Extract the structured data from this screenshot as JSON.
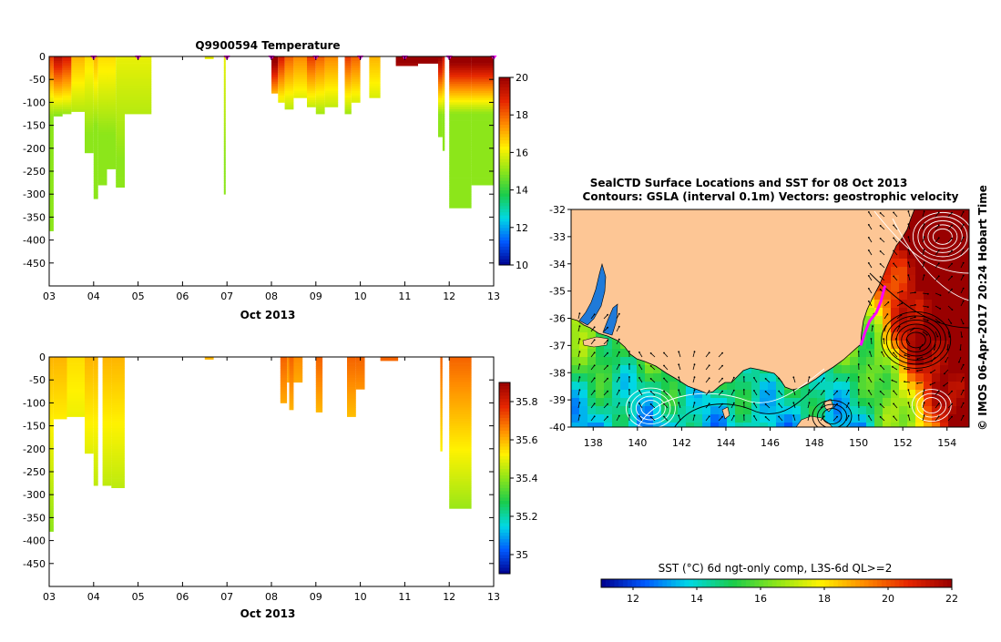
{
  "chart_data": [
    {
      "type": "heatmap",
      "title": "Q9900594  Temperature",
      "xlabel": "Oct 2013",
      "ylabel": "",
      "xlim": [
        3,
        13
      ],
      "ylim": [
        0,
        -500
      ],
      "x_ticks": [
        "03",
        "04",
        "05",
        "06",
        "07",
        "08",
        "09",
        "10",
        "11",
        "12",
        "13"
      ],
      "y_ticks": [
        "0",
        "-50",
        "-100",
        "-150",
        "-200",
        "-250",
        "-300",
        "-350",
        "-400",
        "-450"
      ],
      "colorbar": {
        "min": 10,
        "max": 20,
        "ticks": [
          "20",
          "18",
          "16",
          "14",
          "12",
          "10"
        ]
      },
      "profiles": [
        {
          "t0": 3.0,
          "t1": 3.1,
          "depth": 380,
          "surface_value": 18.5
        },
        {
          "t0": 3.1,
          "t1": 3.3,
          "depth": 130,
          "surface_value": 19.5
        },
        {
          "t0": 3.3,
          "t1": 3.5,
          "depth": 125,
          "surface_value": 19.0
        },
        {
          "t0": 3.5,
          "t1": 3.8,
          "depth": 120,
          "surface_value": 17.0
        },
        {
          "t0": 3.8,
          "t1": 4.0,
          "depth": 210,
          "surface_value": 16.5
        },
        {
          "t0": 4.0,
          "t1": 4.1,
          "depth": 310,
          "surface_value": 17.0
        },
        {
          "t0": 4.1,
          "t1": 4.3,
          "depth": 280,
          "surface_value": 16.5
        },
        {
          "t0": 4.3,
          "t1": 4.5,
          "depth": 245,
          "surface_value": 16.5
        },
        {
          "t0": 4.5,
          "t1": 4.7,
          "depth": 285,
          "surface_value": 16.0
        },
        {
          "t0": 4.7,
          "t1": 5.3,
          "depth": 125,
          "surface_value": 16.0
        },
        {
          "t0": 5.3,
          "t1": 6.5,
          "depth": 0,
          "surface_value": 16.0
        },
        {
          "t0": 6.5,
          "t1": 6.7,
          "depth": 5,
          "surface_value": 16.0
        },
        {
          "t0": 6.93,
          "t1": 6.97,
          "depth": 300,
          "surface_value": 16.0
        },
        {
          "t0": 8.0,
          "t1": 8.15,
          "depth": 80,
          "surface_value": 20.5
        },
        {
          "t0": 8.15,
          "t1": 8.3,
          "depth": 100,
          "surface_value": 19.0
        },
        {
          "t0": 8.3,
          "t1": 8.5,
          "depth": 115,
          "surface_value": 18.0
        },
        {
          "t0": 8.5,
          "t1": 8.8,
          "depth": 90,
          "surface_value": 17.5
        },
        {
          "t0": 8.8,
          "t1": 9.0,
          "depth": 110,
          "surface_value": 18.5
        },
        {
          "t0": 9.0,
          "t1": 9.2,
          "depth": 125,
          "surface_value": 18.0
        },
        {
          "t0": 9.2,
          "t1": 9.5,
          "depth": 110,
          "surface_value": 17.5
        },
        {
          "t0": 9.65,
          "t1": 9.8,
          "depth": 125,
          "surface_value": 18.5
        },
        {
          "t0": 9.8,
          "t1": 10.0,
          "depth": 100,
          "surface_value": 18.0
        },
        {
          "t0": 10.2,
          "t1": 10.45,
          "depth": 90,
          "surface_value": 17.0
        },
        {
          "t0": 10.8,
          "t1": 11.3,
          "depth": 20,
          "surface_value": 20.5
        },
        {
          "t0": 11.3,
          "t1": 11.8,
          "depth": 15,
          "surface_value": 20.5
        },
        {
          "t0": 11.75,
          "t1": 11.85,
          "depth": 175,
          "surface_value": 20.0
        },
        {
          "t0": 11.85,
          "t1": 11.9,
          "depth": 205,
          "surface_value": 19.0
        },
        {
          "t0": 12.0,
          "t1": 12.5,
          "depth": 330,
          "surface_value": 20.5
        },
        {
          "t0": 12.5,
          "t1": 13.0,
          "depth": 280,
          "surface_value": 20.5
        }
      ],
      "profile_markers": [
        4.0,
        5.0,
        7.0,
        8.0,
        9.0,
        10.0,
        11.0,
        12.0,
        13.0
      ]
    },
    {
      "type": "heatmap",
      "title": "",
      "xlabel": "Oct 2013",
      "ylabel": "",
      "xlim": [
        3,
        13
      ],
      "ylim": [
        0,
        -500
      ],
      "x_ticks": [
        "03",
        "04",
        "05",
        "06",
        "07",
        "08",
        "09",
        "10",
        "11",
        "12",
        "13"
      ],
      "y_ticks": [
        "0",
        "-50",
        "-100",
        "-150",
        "-200",
        "-250",
        "-300",
        "-350",
        "-400",
        "-450"
      ],
      "colorbar": {
        "min": 34.9,
        "max": 35.9,
        "ticks": [
          "35.8",
          "35.6",
          "35.4",
          "35.2",
          "35"
        ]
      },
      "profiles": [
        {
          "t0": 3.0,
          "t1": 3.1,
          "depth": 380,
          "surface_value": 35.6
        },
        {
          "t0": 3.1,
          "t1": 3.4,
          "depth": 135,
          "surface_value": 35.6
        },
        {
          "t0": 3.4,
          "t1": 3.8,
          "depth": 130,
          "surface_value": 35.55
        },
        {
          "t0": 3.8,
          "t1": 4.0,
          "depth": 210,
          "surface_value": 35.6
        },
        {
          "t0": 4.0,
          "t1": 4.1,
          "depth": 280,
          "surface_value": 35.6
        },
        {
          "t0": 4.2,
          "t1": 4.4,
          "depth": 280,
          "surface_value": 35.6
        },
        {
          "t0": 4.4,
          "t1": 4.7,
          "depth": 285,
          "surface_value": 35.6
        },
        {
          "t0": 6.5,
          "t1": 6.7,
          "depth": 5,
          "surface_value": 35.6
        },
        {
          "t0": 8.2,
          "t1": 8.35,
          "depth": 100,
          "surface_value": 35.7
        },
        {
          "t0": 8.35,
          "t1": 8.7,
          "depth": 55,
          "surface_value": 35.65
        },
        {
          "t0": 8.4,
          "t1": 8.5,
          "depth": 115,
          "surface_value": 35.7
        },
        {
          "t0": 9.0,
          "t1": 9.15,
          "depth": 120,
          "surface_value": 35.7
        },
        {
          "t0": 9.7,
          "t1": 9.9,
          "depth": 130,
          "surface_value": 35.7
        },
        {
          "t0": 9.9,
          "t1": 10.1,
          "depth": 70,
          "surface_value": 35.7
        },
        {
          "t0": 10.45,
          "t1": 10.85,
          "depth": 8,
          "surface_value": 35.7
        },
        {
          "t0": 11.8,
          "t1": 11.85,
          "depth": 205,
          "surface_value": 35.7
        },
        {
          "t0": 12.0,
          "t1": 12.5,
          "depth": 330,
          "surface_value": 35.7
        }
      ]
    },
    {
      "type": "map",
      "title": "SealCTD Surface Locations and SST for 08 Oct 2013",
      "subtitle": "Contours: GSLA (interval 0.1m) Vectors: geostrophic velocity",
      "xlim": [
        137,
        155
      ],
      "ylim": [
        -40,
        -32
      ],
      "x_ticks": [
        "138",
        "140",
        "142",
        "144",
        "146",
        "148",
        "150",
        "152",
        "154"
      ],
      "y_ticks": [
        "-32",
        "-33",
        "-34",
        "-35",
        "-36",
        "-37",
        "-38",
        "-39",
        "-40"
      ],
      "colorbar": {
        "label": "SST (°C) 6d ngt-only comp, L3S-6d QL>=2",
        "min": 11,
        "max": 22,
        "ticks": [
          "12",
          "14",
          "16",
          "18",
          "20",
          "22"
        ]
      },
      "side_label": "© IMOS 06-Apr-2017 20:24 Hobart Time",
      "seal_track": [
        [
          151.2,
          -34.8
        ],
        [
          151.0,
          -35.4
        ],
        [
          150.8,
          -35.8
        ],
        [
          150.5,
          -36.1
        ],
        [
          150.3,
          -36.5
        ],
        [
          150.1,
          -37.0
        ]
      ]
    }
  ]
}
